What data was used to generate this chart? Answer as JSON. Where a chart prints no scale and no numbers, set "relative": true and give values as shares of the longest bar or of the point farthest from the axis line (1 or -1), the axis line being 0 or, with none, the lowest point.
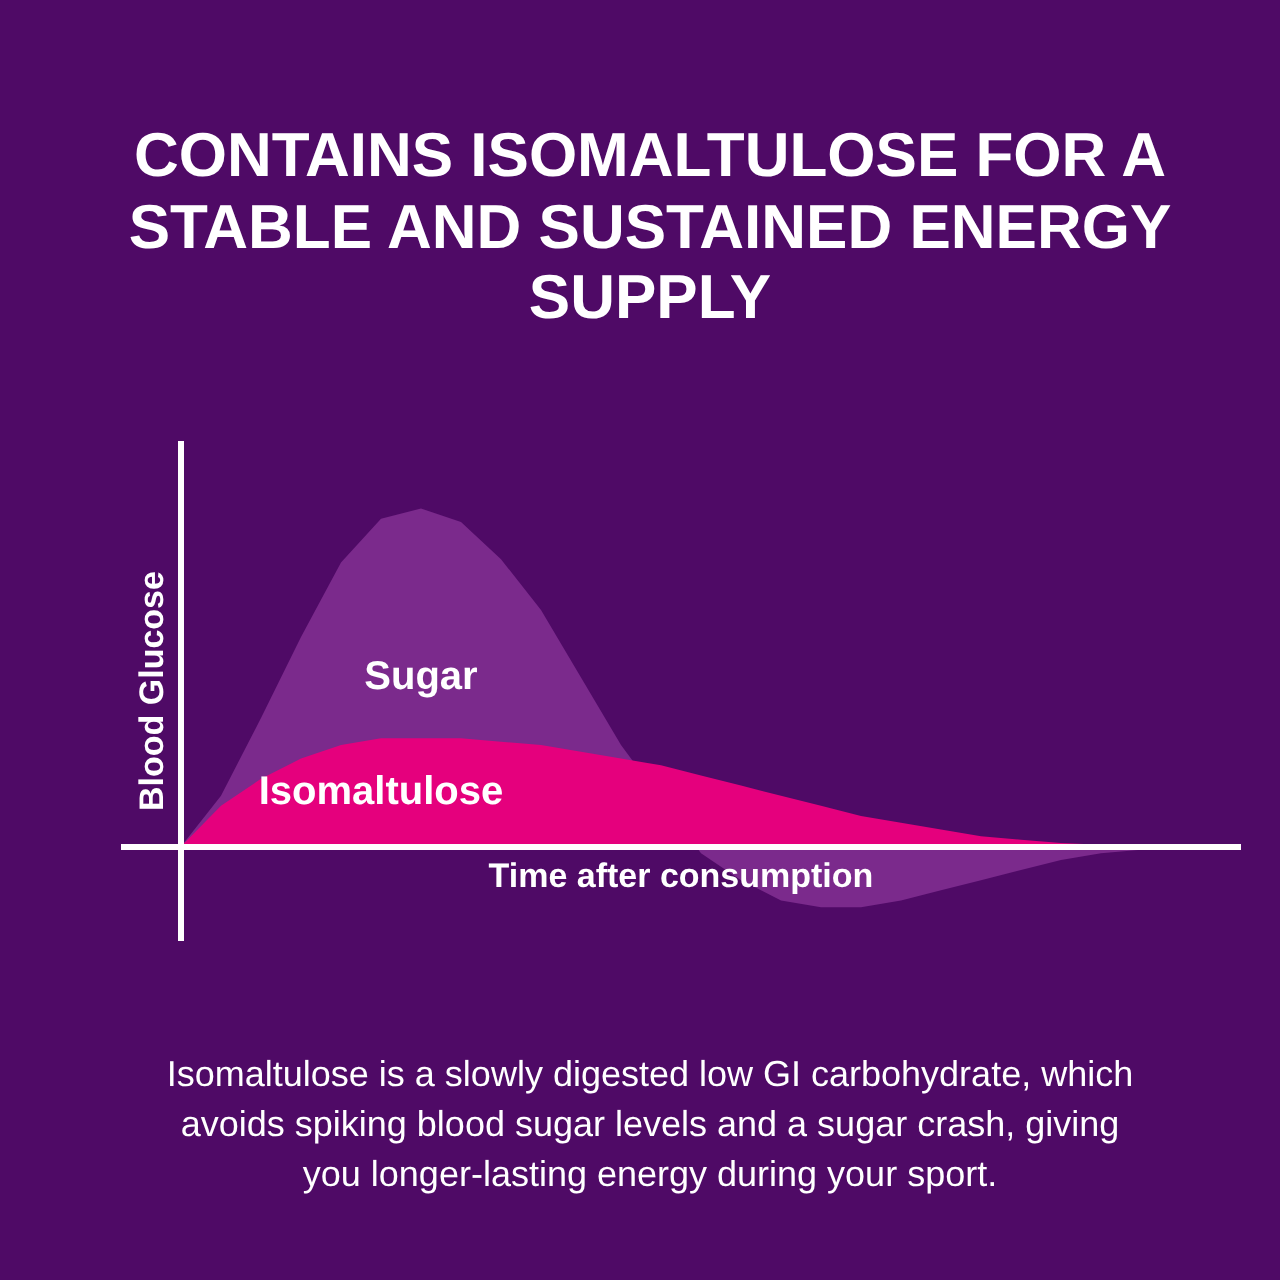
{
  "chart_data": {
    "type": "area",
    "relative": true,
    "title": "CONTAINS ISOMALTULOSE FOR A STABLE AND SUSTAINED ENERGY SUPPLY",
    "xlabel": "Time after consumption",
    "ylabel": "Blood Glucose",
    "categories": [
      null,
      null,
      null,
      null,
      null,
      null,
      null,
      null,
      null,
      null,
      null,
      null,
      null,
      null,
      null,
      null,
      null,
      null,
      null,
      null,
      null,
      null,
      null,
      null,
      null,
      null
    ],
    "series": [
      {
        "name": "Sugar",
        "color": "#7b2a8c",
        "values": [
          0,
          0.15,
          0.38,
          0.62,
          0.84,
          0.97,
          1.0,
          0.96,
          0.85,
          0.7,
          0.5,
          0.3,
          null,
          -0.02,
          -0.1,
          -0.16,
          -0.18,
          -0.18,
          -0.16,
          -0.13,
          -0.1,
          -0.07,
          -0.04,
          -0.02,
          -0.01,
          0
        ]
      },
      {
        "name": "Isomaltulose",
        "color": "#e5007d",
        "values": [
          0,
          0.12,
          0.2,
          0.26,
          0.3,
          0.32,
          0.32,
          0.32,
          0.31,
          0.3,
          0.28,
          0.26,
          0.24,
          0.21,
          0.18,
          0.15,
          0.12,
          0.09,
          0.07,
          0.05,
          0.03,
          0.02,
          0.01,
          0.005,
          0,
          0
        ]
      }
    ],
    "annotations": [
      "Isomaltulose is a slowly digested low GI carbohydrate, which avoids spiking blood sugar levels and a sugar crash, giving you longer-lasting energy during your sport."
    ]
  }
}
